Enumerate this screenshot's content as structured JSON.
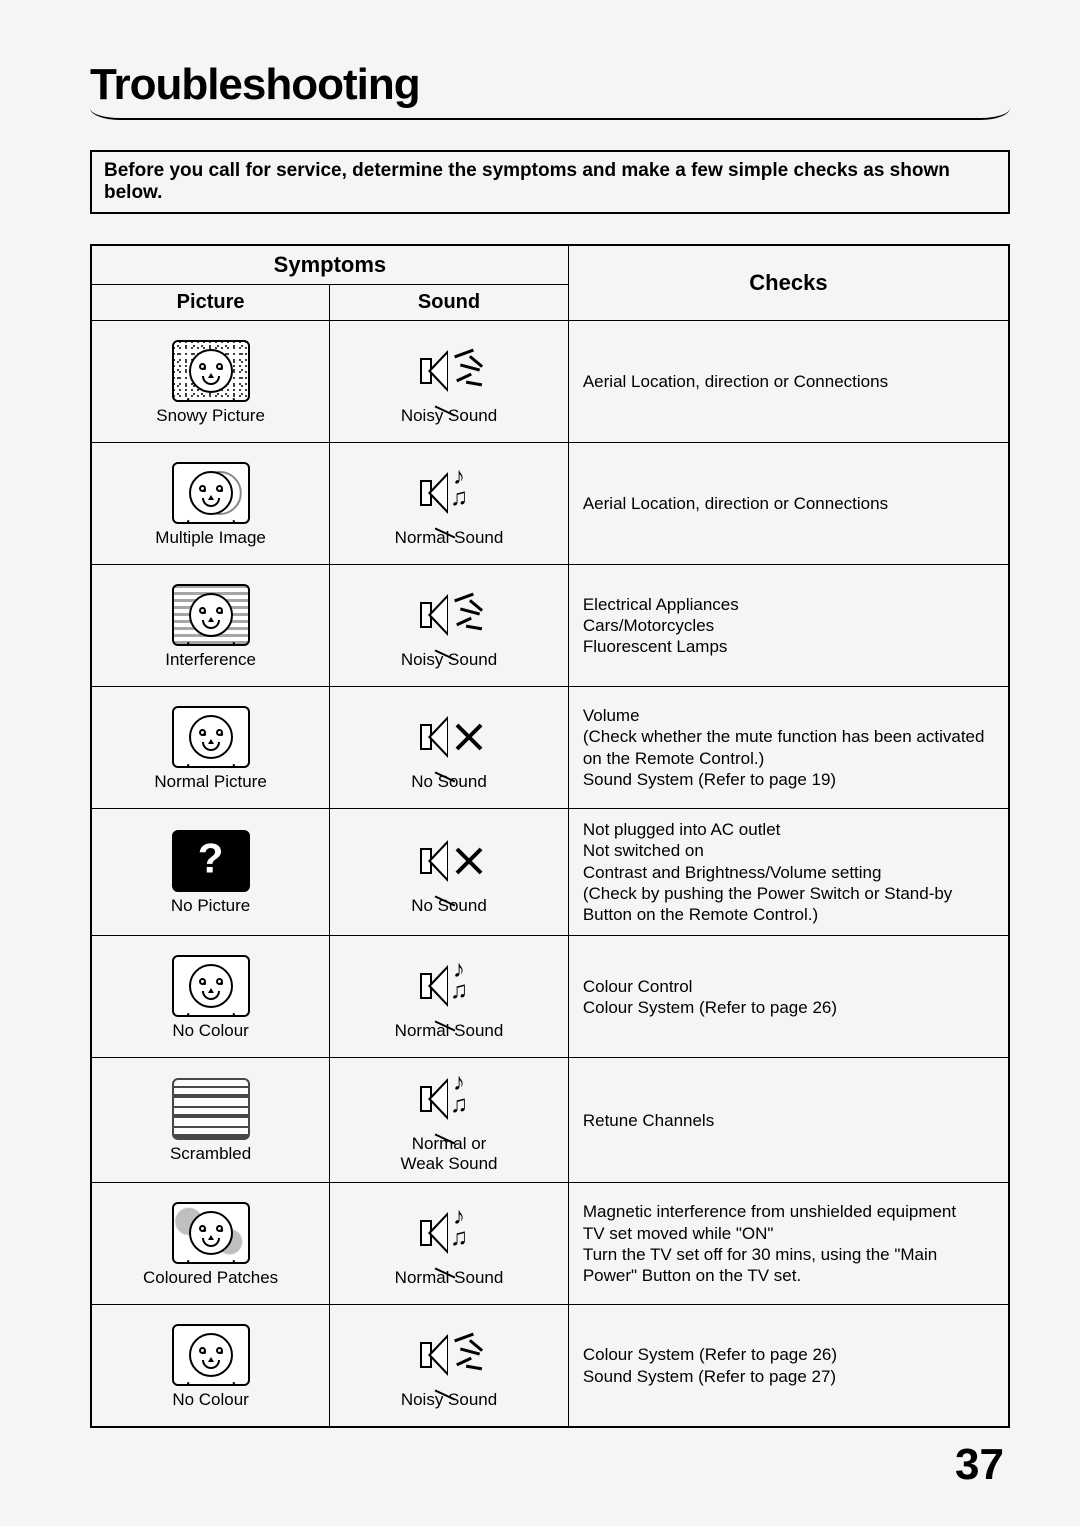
{
  "title": "Troubleshooting",
  "banner": "Before you call for service, determine the symptoms and make a few simple checks as shown below.",
  "headers": {
    "symptoms": "Symptoms",
    "picture": "Picture",
    "sound": "Sound",
    "checks": "Checks"
  },
  "rows": [
    {
      "picture": "Snowy Picture",
      "sound": "Noisy Sound",
      "checks": "Aerial Location, direction or Connections"
    },
    {
      "picture": "Multiple Image",
      "sound": "Normal Sound",
      "checks": "Aerial Location, direction or Connections"
    },
    {
      "picture": "Interference",
      "sound": "Noisy Sound",
      "checks": "Electrical Appliances\nCars/Motorcycles\nFluorescent Lamps"
    },
    {
      "picture": "Normal Picture",
      "sound": "No Sound",
      "checks": "Volume\n(Check whether the mute function has been activated on the Remote Control.)\nSound System (Refer to page 19)"
    },
    {
      "picture": "No Picture",
      "sound": "No Sound",
      "checks": "Not plugged into AC outlet\nNot switched on\nContrast and Brightness/Volume setting\n(Check by pushing the Power Switch or Stand-by Button on the Remote Control.)"
    },
    {
      "picture": "No Colour",
      "sound": "Normal Sound",
      "checks": "Colour Control\nColour System (Refer to page 26)"
    },
    {
      "picture": "Scrambled",
      "sound": "Normal or\nWeak Sound",
      "checks": "Retune Channels"
    },
    {
      "picture": "Coloured Patches",
      "sound": "Normal Sound",
      "checks": "Magnetic interference from unshielded equipment\nTV set moved while \"ON\"\nTurn the TV set off for 30 mins, using the \"Main Power\" Button on the TV set."
    },
    {
      "picture": "No Colour",
      "sound": "Noisy Sound",
      "checks": "Colour System (Refer to page 26)\nSound System (Refer to page 27)"
    }
  ],
  "page_number": "37"
}
